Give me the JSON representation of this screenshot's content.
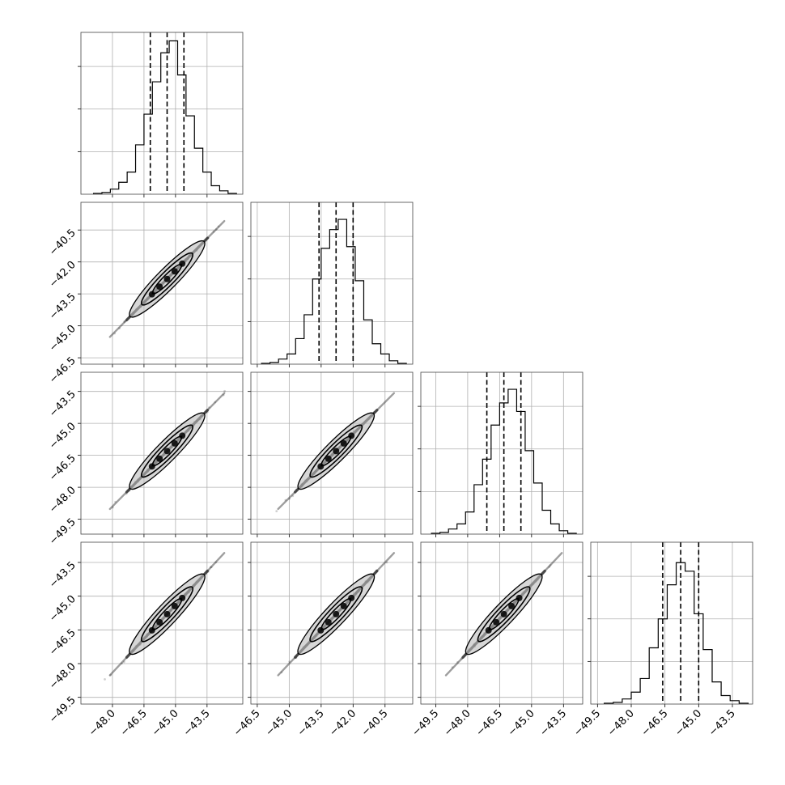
{
  "chart_data": {
    "type": "corner",
    "title": "",
    "grid": true,
    "dimensions": 4,
    "colors": {
      "line": "#000000",
      "grid": "#b0b0b0",
      "frame": "#444444",
      "density_fill": "#bdbdbd",
      "points": "#2b2b2b"
    },
    "params": [
      {
        "range": [
          -49.5,
          -41.8
        ],
        "quantiles": [
          -46.2,
          -45.4,
          -44.6
        ],
        "hist_ticks": [
          0.25,
          0.5,
          0.75
        ],
        "bin_edges": [
          -48.9,
          -48.5,
          -48.1,
          -47.7,
          -47.3,
          -46.9,
          -46.5,
          -46.1,
          -45.7,
          -45.3,
          -44.9,
          -44.5,
          -44.1,
          -43.7,
          -43.3,
          -42.9,
          -42.5,
          -42.1
        ],
        "hist": [
          0.005,
          0.01,
          0.03,
          0.07,
          0.13,
          0.29,
          0.47,
          0.66,
          0.83,
          0.9,
          0.7,
          0.46,
          0.27,
          0.13,
          0.05,
          0.02,
          0.005
        ]
      },
      {
        "range": [
          -46.8,
          -39.2
        ],
        "quantiles": [
          -43.6,
          -42.8,
          -42.0
        ],
        "hist_ticks": [
          0.25,
          0.5,
          0.75
        ],
        "bin_edges": [
          -46.3,
          -45.9,
          -45.5,
          -45.1,
          -44.7,
          -44.3,
          -43.9,
          -43.5,
          -43.1,
          -42.7,
          -42.3,
          -41.9,
          -41.5,
          -41.1,
          -40.7,
          -40.3,
          -39.9,
          -39.5
        ],
        "hist": [
          0.005,
          0.01,
          0.03,
          0.06,
          0.15,
          0.29,
          0.5,
          0.68,
          0.79,
          0.85,
          0.69,
          0.49,
          0.26,
          0.12,
          0.06,
          0.02,
          0.005
        ]
      },
      {
        "range": [
          -50.2,
          -42.6
        ],
        "quantiles": [
          -47.1,
          -46.3,
          -45.5
        ],
        "hist_ticks": [
          0.25,
          0.5,
          0.75
        ],
        "bin_edges": [
          -49.7,
          -49.3,
          -48.9,
          -48.5,
          -48.1,
          -47.7,
          -47.3,
          -46.9,
          -46.5,
          -46.1,
          -45.7,
          -45.3,
          -44.9,
          -44.5,
          -44.1,
          -43.7,
          -43.3,
          -42.9
        ],
        "hist": [
          0.005,
          0.01,
          0.03,
          0.06,
          0.13,
          0.29,
          0.44,
          0.64,
          0.77,
          0.85,
          0.72,
          0.49,
          0.3,
          0.14,
          0.06,
          0.02,
          0.005
        ]
      },
      {
        "range": [
          -49.8,
          -42.6
        ],
        "quantiles": [
          -46.6,
          -45.8,
          -45.0
        ],
        "hist_ticks": [
          0.25,
          0.5,
          0.75
        ],
        "bin_edges": [
          -49.2,
          -48.8,
          -48.4,
          -48.0,
          -47.6,
          -47.2,
          -46.8,
          -46.4,
          -46.0,
          -45.6,
          -45.2,
          -44.8,
          -44.4,
          -44.0,
          -43.6,
          -43.2,
          -42.8
        ],
        "hist": [
          0.005,
          0.01,
          0.03,
          0.07,
          0.15,
          0.33,
          0.5,
          0.7,
          0.83,
          0.78,
          0.53,
          0.32,
          0.13,
          0.05,
          0.02,
          0.005
        ]
      }
    ],
    "panels": [
      {
        "row": 0,
        "col": 0,
        "kind": "hist",
        "x_ticks": [
          -48.0,
          -46.5,
          -45.0,
          -43.5
        ],
        "x_tick_labels": [],
        "y_ticks": [],
        "y_tick_labels": []
      },
      {
        "row": 1,
        "col": 0,
        "kind": "scatter",
        "x_ticks": [
          -48.0,
          -46.5,
          -45.0,
          -43.5
        ],
        "x_tick_labels": [],
        "y_ticks": [
          -40.5,
          -42.0,
          -43.5,
          -45.0,
          -46.5
        ],
        "y_tick_labels": [
          "−40.5",
          "−42.0",
          "−43.5",
          "−45.0",
          "−46.5"
        ]
      },
      {
        "row": 1,
        "col": 1,
        "kind": "hist",
        "x_ticks": [
          -46.5,
          -45.0,
          -43.5,
          -42.0,
          -40.5
        ],
        "x_tick_labels": [],
        "y_ticks": [],
        "y_tick_labels": []
      },
      {
        "row": 2,
        "col": 0,
        "kind": "scatter",
        "x_ticks": [
          -48.0,
          -46.5,
          -45.0,
          -43.5
        ],
        "x_tick_labels": [],
        "y_ticks": [
          -43.5,
          -45.0,
          -46.5,
          -48.0,
          -49.5
        ],
        "y_tick_labels": [
          "−43.5",
          "−45.0",
          "−46.5",
          "−48.0",
          "−49.5"
        ]
      },
      {
        "row": 2,
        "col": 1,
        "kind": "scatter",
        "x_ticks": [
          -46.5,
          -45.0,
          -43.5,
          -42.0,
          -40.5
        ],
        "x_tick_labels": [],
        "y_ticks": [
          -43.5,
          -45.0,
          -46.5,
          -48.0,
          -49.5
        ],
        "y_tick_labels": []
      },
      {
        "row": 2,
        "col": 2,
        "kind": "hist",
        "x_ticks": [
          -49.5,
          -48.0,
          -46.5,
          -45.0,
          -43.5
        ],
        "x_tick_labels": [],
        "y_ticks": [],
        "y_tick_labels": []
      },
      {
        "row": 3,
        "col": 0,
        "kind": "scatter",
        "x_ticks": [
          -48.0,
          -46.5,
          -45.0,
          -43.5
        ],
        "x_tick_labels": [
          "−48.0",
          "−46.5",
          "−45.0",
          "−43.5"
        ],
        "y_ticks": [
          -43.5,
          -45.0,
          -46.5,
          -48.0,
          -49.5
        ],
        "y_tick_labels": [
          "−43.5",
          "−45.0",
          "−46.5",
          "−48.0",
          "−49.5"
        ]
      },
      {
        "row": 3,
        "col": 1,
        "kind": "scatter",
        "x_ticks": [
          -46.5,
          -45.0,
          -43.5,
          -42.0,
          -40.5
        ],
        "x_tick_labels": [
          "−46.5",
          "−45.0",
          "−43.5",
          "−42.0",
          "−40.5"
        ],
        "y_ticks": [
          -43.5,
          -45.0,
          -46.5,
          -48.0,
          -49.5
        ],
        "y_tick_labels": []
      },
      {
        "row": 3,
        "col": 2,
        "kind": "scatter",
        "x_ticks": [
          -49.5,
          -48.0,
          -46.5,
          -45.0,
          -43.5
        ],
        "x_tick_labels": [
          "−49.5",
          "−48.0",
          "−46.5",
          "−45.0",
          "−43.5"
        ],
        "y_ticks": [
          -43.5,
          -45.0,
          -46.5,
          -48.0,
          -49.5
        ],
        "y_tick_labels": []
      },
      {
        "row": 3,
        "col": 3,
        "kind": "hist",
        "x_ticks": [
          -49.5,
          -48.0,
          -46.5,
          -45.0,
          -43.5
        ],
        "x_tick_labels": [
          "−49.5",
          "−48.0",
          "−46.5",
          "−45.0",
          "−43.5"
        ],
        "y_ticks": [],
        "y_tick_labels": []
      }
    ]
  }
}
